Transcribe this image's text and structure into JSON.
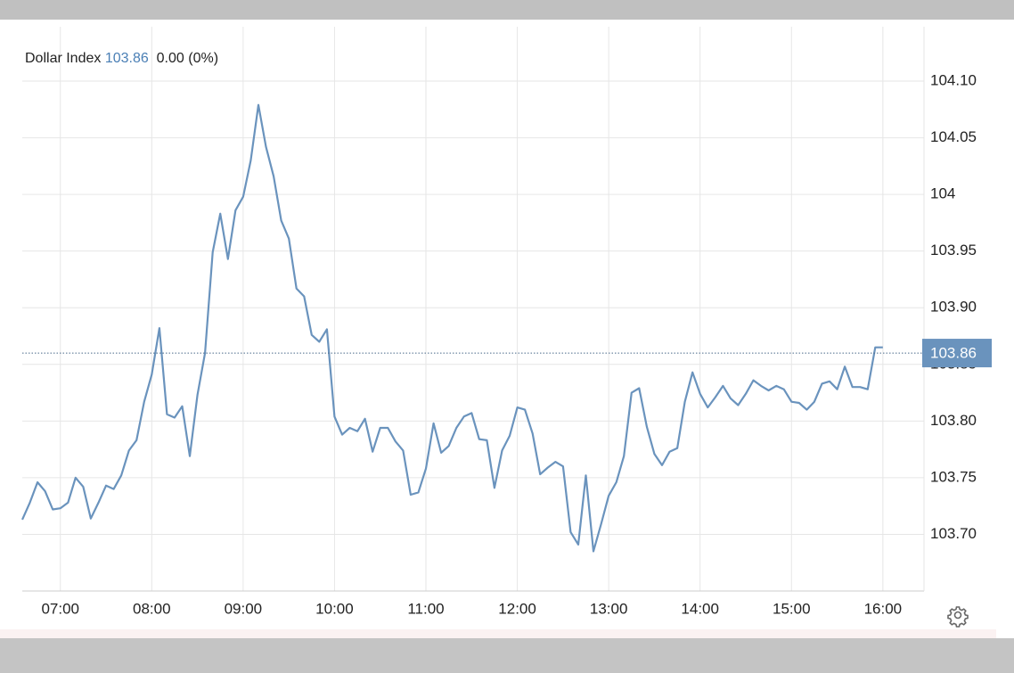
{
  "chart_data": {
    "type": "line",
    "title": "Dollar Index",
    "last_value": 103.86,
    "change": "0.00 (0%)",
    "x": [
      "06:35",
      "06:40",
      "06:45",
      "06:50",
      "06:55",
      "07:00",
      "07:05",
      "07:10",
      "07:15",
      "07:20",
      "07:25",
      "07:30",
      "07:35",
      "07:40",
      "07:45",
      "07:50",
      "07:55",
      "08:00",
      "08:05",
      "08:10",
      "08:15",
      "08:20",
      "08:25",
      "08:30",
      "08:35",
      "08:40",
      "08:45",
      "08:50",
      "08:55",
      "09:00",
      "09:05",
      "09:10",
      "09:15",
      "09:20",
      "09:25",
      "09:30",
      "09:35",
      "09:40",
      "09:45",
      "09:50",
      "09:55",
      "10:00",
      "10:05",
      "10:10",
      "10:15",
      "10:20",
      "10:25",
      "10:30",
      "10:35",
      "10:40",
      "10:45",
      "10:50",
      "10:55",
      "11:00",
      "11:05",
      "11:10",
      "11:15",
      "11:20",
      "11:25",
      "11:30",
      "11:35",
      "11:40",
      "11:45",
      "11:50",
      "11:55",
      "12:00",
      "12:05",
      "12:10",
      "12:15",
      "12:20",
      "12:25",
      "12:30",
      "12:35",
      "12:40",
      "12:45",
      "12:50",
      "12:55",
      "13:00",
      "13:05",
      "13:10",
      "13:15",
      "13:20",
      "13:25",
      "13:30",
      "13:35",
      "13:40",
      "13:45",
      "13:50",
      "13:55",
      "14:00",
      "14:05",
      "14:10",
      "14:15",
      "14:20",
      "14:25",
      "14:30",
      "14:35",
      "14:40",
      "14:45",
      "14:50",
      "14:55",
      "15:00",
      "15:05",
      "15:10",
      "15:15",
      "15:20",
      "15:25",
      "15:30",
      "15:35",
      "15:40",
      "15:45",
      "15:50",
      "15:55",
      "16:00"
    ],
    "values": [
      103.713,
      103.728,
      103.746,
      103.738,
      103.722,
      103.723,
      103.728,
      103.75,
      103.742,
      103.714,
      103.728,
      103.743,
      103.74,
      103.752,
      103.774,
      103.783,
      103.817,
      103.841,
      103.882,
      103.806,
      103.803,
      103.813,
      103.769,
      103.823,
      103.86,
      103.949,
      103.983,
      103.943,
      103.986,
      103.998,
      104.03,
      104.079,
      104.042,
      104.016,
      103.977,
      103.961,
      103.917,
      103.91,
      103.876,
      103.87,
      103.881,
      103.804,
      103.788,
      103.794,
      103.791,
      103.802,
      103.773,
      103.794,
      103.794,
      103.782,
      103.774,
      103.735,
      103.737,
      103.758,
      103.798,
      103.772,
      103.778,
      103.794,
      103.804,
      103.807,
      103.784,
      103.783,
      103.741,
      103.774,
      103.787,
      103.812,
      103.81,
      103.789,
      103.753,
      103.759,
      103.764,
      103.76,
      103.702,
      103.691,
      103.752,
      103.685,
      103.709,
      103.734,
      103.746,
      103.769,
      103.825,
      103.829,
      103.795,
      103.771,
      103.761,
      103.773,
      103.776,
      103.817,
      103.843,
      103.824,
      103.812,
      103.821,
      103.831,
      103.82,
      103.814,
      103.824,
      103.836,
      103.831,
      103.827,
      103.831,
      103.828,
      103.817,
      103.816,
      103.81,
      103.817,
      103.833,
      103.835,
      103.828,
      103.848,
      103.83,
      103.83,
      103.828,
      103.865,
      103.865
    ],
    "color": "#6a93bd",
    "xlim": [
      "06:35",
      "16:27"
    ],
    "xticks": [
      "07:00",
      "08:00",
      "09:00",
      "10:00",
      "11:00",
      "12:00",
      "13:00",
      "14:00",
      "15:00",
      "16:00"
    ],
    "ylim": [
      103.65,
      104.148
    ],
    "yticks": [
      {
        "value": 103.7,
        "label": "103.70"
      },
      103.75,
      {
        "value": 103.8,
        "label": "103.80"
      },
      103.85,
      {
        "value": 103.9,
        "label": "103.90"
      },
      103.95,
      104,
      104.05,
      {
        "value": 104.1,
        "label": "104.10"
      }
    ],
    "grid": true
  }
}
